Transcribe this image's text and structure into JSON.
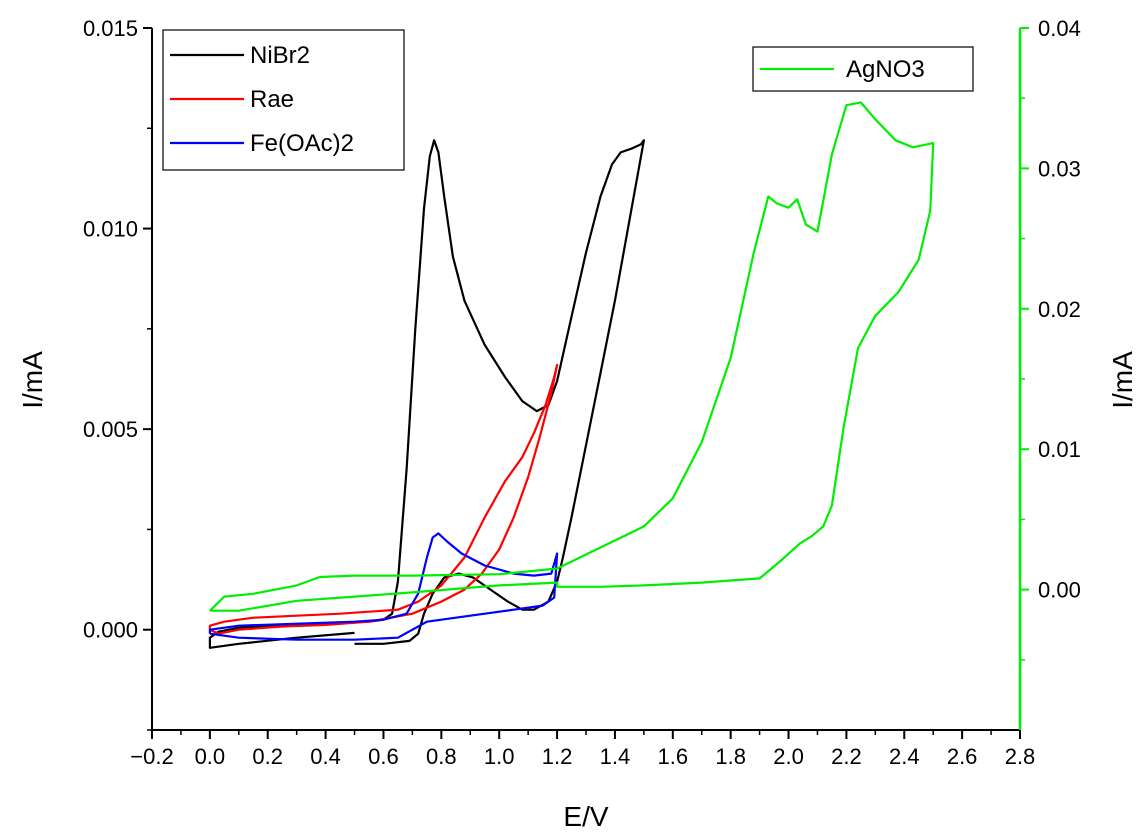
{
  "chart_data": {
    "type": "line",
    "xlabel": "E/V",
    "ylabel_left": "I/mA",
    "ylabel_right": "I/mA",
    "xlim": [
      -0.2,
      2.8
    ],
    "ylim_left": [
      -0.0025,
      0.015
    ],
    "ylim_right": [
      -0.01,
      0.04
    ],
    "x_ticks": [
      "−0.2",
      "0.0",
      "0.2",
      "0.4",
      "0.6",
      "0.8",
      "1.0",
      "1.2",
      "1.4",
      "1.6",
      "1.8",
      "2.0",
      "2.2",
      "2.4",
      "2.6",
      "2.8"
    ],
    "y_left_ticks": [
      "0.000",
      "0.005",
      "0.010",
      "0.015"
    ],
    "y_right_ticks": [
      "0.00",
      "0.01",
      "0.02",
      "0.03",
      "0.04"
    ],
    "grid": false,
    "legends": [
      {
        "position": "top-left",
        "entries": [
          "NiBr2",
          "Rae",
          "Fe(OAc)2"
        ]
      },
      {
        "position": "top-right",
        "entries": [
          "AgNO3"
        ]
      }
    ],
    "series": [
      {
        "name": "NiBr2",
        "axis": "left",
        "color": "#000000",
        "points": [
          [
            0.5,
            -8e-05
          ],
          [
            0.3,
            -0.0002
          ],
          [
            0.1,
            -0.00035
          ],
          [
            0.0,
            -0.00045
          ],
          [
            0.0,
            -0.0002
          ],
          [
            0.03,
            -5e-05
          ],
          [
            0.1,
            5e-05
          ],
          [
            0.25,
            0.00012
          ],
          [
            0.4,
            0.00015
          ],
          [
            0.55,
            0.0002
          ],
          [
            0.6,
            0.00025
          ],
          [
            0.63,
            0.0004
          ],
          [
            0.65,
            0.0012
          ],
          [
            0.68,
            0.004
          ],
          [
            0.71,
            0.0075
          ],
          [
            0.74,
            0.0105
          ],
          [
            0.76,
            0.0118
          ],
          [
            0.775,
            0.0122
          ],
          [
            0.79,
            0.0119
          ],
          [
            0.81,
            0.0108
          ],
          [
            0.84,
            0.0093
          ],
          [
            0.88,
            0.0082
          ],
          [
            0.95,
            0.0071
          ],
          [
            1.02,
            0.0063
          ],
          [
            1.08,
            0.0057
          ],
          [
            1.13,
            0.00545
          ],
          [
            1.17,
            0.0056
          ],
          [
            1.2,
            0.0062
          ],
          [
            1.25,
            0.0078
          ],
          [
            1.3,
            0.0094
          ],
          [
            1.35,
            0.0108
          ],
          [
            1.39,
            0.0116
          ],
          [
            1.42,
            0.0119
          ],
          [
            1.46,
            0.012
          ],
          [
            1.49,
            0.0121
          ],
          [
            1.5,
            0.0122
          ],
          [
            1.48,
            0.0114
          ],
          [
            1.44,
            0.0098
          ],
          [
            1.4,
            0.0082
          ],
          [
            1.35,
            0.0064
          ],
          [
            1.3,
            0.0046
          ],
          [
            1.25,
            0.0028
          ],
          [
            1.22,
            0.0018
          ],
          [
            1.2,
            0.0012
          ],
          [
            1.17,
            0.0007
          ],
          [
            1.12,
            0.0005
          ],
          [
            1.08,
            0.0005
          ],
          [
            1.03,
            0.0007
          ],
          [
            0.97,
            0.001
          ],
          [
            0.91,
            0.0013
          ],
          [
            0.86,
            0.0014
          ],
          [
            0.81,
            0.0013
          ],
          [
            0.77,
            0.0009
          ],
          [
            0.74,
            0.0004
          ],
          [
            0.72,
            -0.0001
          ],
          [
            0.69,
            -0.00028
          ],
          [
            0.6,
            -0.00035
          ],
          [
            0.5,
            -0.00035
          ]
        ]
      },
      {
        "name": "Rae",
        "axis": "left",
        "color": "#ff0000",
        "points": [
          [
            0.0,
            0.0
          ],
          [
            0.0,
            0.0001
          ],
          [
            0.05,
            0.0002
          ],
          [
            0.15,
            0.0003
          ],
          [
            0.3,
            0.00035
          ],
          [
            0.45,
            0.0004
          ],
          [
            0.55,
            0.00045
          ],
          [
            0.65,
            0.0005
          ],
          [
            0.72,
            0.0007
          ],
          [
            0.8,
            0.0011
          ],
          [
            0.88,
            0.0018
          ],
          [
            0.95,
            0.0028
          ],
          [
            1.02,
            0.0037
          ],
          [
            1.08,
            0.0043
          ],
          [
            1.12,
            0.0049
          ],
          [
            1.16,
            0.0056
          ],
          [
            1.19,
            0.0063
          ],
          [
            1.2,
            0.0066
          ],
          [
            1.18,
            0.0059
          ],
          [
            1.14,
            0.0048
          ],
          [
            1.1,
            0.0038
          ],
          [
            1.05,
            0.0028
          ],
          [
            1.0,
            0.002
          ],
          [
            0.94,
            0.0014
          ],
          [
            0.88,
            0.001
          ],
          [
            0.8,
            0.0007
          ],
          [
            0.7,
            0.0004
          ],
          [
            0.55,
            0.0002
          ],
          [
            0.4,
            0.00012
          ],
          [
            0.25,
            8e-05
          ],
          [
            0.1,
            0.0
          ],
          [
            0.03,
            -0.0001
          ],
          [
            0.0,
            0.0
          ]
        ]
      },
      {
        "name": "Fe(OAc)2",
        "axis": "left",
        "color": "#0000ff",
        "points": [
          [
            0.0,
            -0.0001
          ],
          [
            0.0,
            0.0
          ],
          [
            0.1,
            0.0001
          ],
          [
            0.3,
            0.00015
          ],
          [
            0.5,
            0.0002
          ],
          [
            0.6,
            0.00025
          ],
          [
            0.68,
            0.0004
          ],
          [
            0.72,
            0.0009
          ],
          [
            0.75,
            0.0018
          ],
          [
            0.77,
            0.0023
          ],
          [
            0.79,
            0.0024
          ],
          [
            0.82,
            0.0022
          ],
          [
            0.87,
            0.0019
          ],
          [
            0.95,
            0.0016
          ],
          [
            1.05,
            0.0014
          ],
          [
            1.12,
            0.00135
          ],
          [
            1.18,
            0.0014
          ],
          [
            1.2,
            0.0019
          ],
          [
            1.19,
            0.0008
          ],
          [
            1.15,
            0.0006
          ],
          [
            1.05,
            0.0005
          ],
          [
            0.95,
            0.0004
          ],
          [
            0.85,
            0.0003
          ],
          [
            0.75,
            0.0002
          ],
          [
            0.65,
            -0.0002
          ],
          [
            0.5,
            -0.00025
          ],
          [
            0.3,
            -0.00025
          ],
          [
            0.1,
            -0.0002
          ],
          [
            0.0,
            -0.0001
          ]
        ]
      },
      {
        "name": "AgNO3",
        "axis": "right",
        "color": "#00ee00",
        "points": [
          [
            0.0,
            -0.0015
          ],
          [
            0.05,
            -0.0005
          ],
          [
            0.15,
            -0.0003
          ],
          [
            0.3,
            0.0003
          ],
          [
            0.38,
            0.0009
          ],
          [
            0.5,
            0.001
          ],
          [
            0.7,
            0.001
          ],
          [
            1.0,
            0.0011
          ],
          [
            1.2,
            0.0015
          ],
          [
            1.3,
            0.0025
          ],
          [
            1.4,
            0.0035
          ],
          [
            1.5,
            0.0045
          ],
          [
            1.6,
            0.0065
          ],
          [
            1.7,
            0.0105
          ],
          [
            1.8,
            0.0165
          ],
          [
            1.88,
            0.024
          ],
          [
            1.93,
            0.028
          ],
          [
            1.96,
            0.0275
          ],
          [
            2.0,
            0.0272
          ],
          [
            2.03,
            0.0278
          ],
          [
            2.06,
            0.026
          ],
          [
            2.1,
            0.0255
          ],
          [
            2.15,
            0.031
          ],
          [
            2.2,
            0.0345
          ],
          [
            2.25,
            0.0347
          ],
          [
            2.3,
            0.0335
          ],
          [
            2.37,
            0.032
          ],
          [
            2.43,
            0.0315
          ],
          [
            2.5,
            0.0318
          ],
          [
            2.49,
            0.027
          ],
          [
            2.45,
            0.0235
          ],
          [
            2.38,
            0.0212
          ],
          [
            2.3,
            0.0195
          ],
          [
            2.24,
            0.0172
          ],
          [
            2.19,
            0.0115
          ],
          [
            2.15,
            0.006
          ],
          [
            2.12,
            0.0045
          ],
          [
            2.08,
            0.0038
          ],
          [
            2.04,
            0.0033
          ],
          [
            1.97,
            0.002
          ],
          [
            1.9,
            0.0008
          ],
          [
            1.7,
            0.0005
          ],
          [
            1.5,
            0.0003
          ],
          [
            1.35,
            0.0002
          ],
          [
            1.2,
            0.0002
          ],
          [
            1.2,
            0.0005
          ],
          [
            1.0,
            0.0003
          ],
          [
            0.7,
            -0.0002
          ],
          [
            0.5,
            -0.0005
          ],
          [
            0.3,
            -0.0008
          ],
          [
            0.1,
            -0.0015
          ],
          [
            0.0,
            -0.0015
          ]
        ]
      }
    ]
  }
}
